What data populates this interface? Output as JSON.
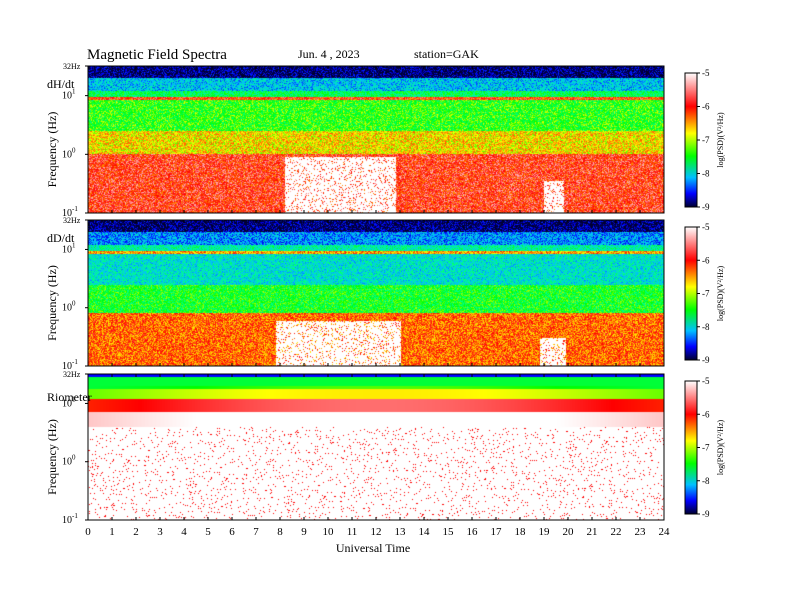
{
  "header": {
    "title": "Magnetic  Field  Spectra",
    "date": "Jun. 4  , 2023",
    "station": "station=GAK"
  },
  "chart_data": [
    {
      "type": "heatmap",
      "panel_label": "dH/dt",
      "ylabel": "Frequency  (Hz)",
      "y_scale": "log",
      "ylim": [
        0.1,
        32
      ],
      "y_ticks": [
        {
          "value": 32,
          "base": "32Hz",
          "exp": ""
        },
        {
          "value": 10,
          "base": "10",
          "exp": "1"
        },
        {
          "value": 1,
          "base": "10",
          "exp": "0"
        },
        {
          "value": 0.1,
          "base": "10",
          "exp": "-1"
        }
      ],
      "xlim": [
        0,
        24
      ],
      "colorbar": {
        "label": "log(PSD)(V²/Hz)",
        "range": [
          -9,
          -5
        ],
        "ticks": [
          "-5",
          "-6",
          "-7",
          "-8",
          "-9"
        ]
      },
      "bands": [
        {
          "f_low": 20,
          "f_high": 32,
          "level": -8.9
        },
        {
          "f_low": 12,
          "f_high": 20,
          "level": -8.0
        },
        {
          "f_low": 9.5,
          "f_high": 12,
          "level": -7.3
        },
        {
          "f_low": 8.3,
          "f_high": 9.5,
          "level": -5.8
        },
        {
          "f_low": 2.5,
          "f_high": 8.3,
          "level": -7.0
        },
        {
          "f_low": 1.0,
          "f_high": 2.5,
          "level": -6.4
        },
        {
          "f_low": 0.1,
          "f_high": 1.0,
          "level": -5.7
        }
      ],
      "quiet_regions": [
        {
          "t_start": 8.2,
          "t_end": 12.8,
          "f_top": 0.9
        },
        {
          "t_start": 19.0,
          "t_end": 19.8,
          "f_top": 0.35
        }
      ]
    },
    {
      "type": "heatmap",
      "panel_label": "dD/dt",
      "ylabel": "Frequency  (Hz)",
      "y_scale": "log",
      "ylim": [
        0.1,
        32
      ],
      "y_ticks": [
        {
          "value": 32,
          "base": "32Hz",
          "exp": ""
        },
        {
          "value": 10,
          "base": "10",
          "exp": "1"
        },
        {
          "value": 1,
          "base": "10",
          "exp": "0"
        },
        {
          "value": 0.1,
          "base": "10",
          "exp": "-1"
        }
      ],
      "xlim": [
        0,
        24
      ],
      "colorbar": {
        "label": "log(PSD)(V²/Hz)",
        "range": [
          -9,
          -5
        ],
        "ticks": [
          "-5",
          "-6",
          "-7",
          "-8",
          "-9"
        ]
      },
      "bands": [
        {
          "f_low": 20,
          "f_high": 32,
          "level": -8.9
        },
        {
          "f_low": 12,
          "f_high": 20,
          "level": -8.2
        },
        {
          "f_low": 9.5,
          "f_high": 12,
          "level": -7.6
        },
        {
          "f_low": 8.3,
          "f_high": 9.5,
          "level": -6.2
        },
        {
          "f_low": 2.5,
          "f_high": 8.3,
          "level": -7.8
        },
        {
          "f_low": 0.8,
          "f_high": 2.5,
          "level": -7.1
        },
        {
          "f_low": 0.1,
          "f_high": 0.8,
          "level": -6.0
        }
      ],
      "quiet_regions": [
        {
          "t_start": 7.8,
          "t_end": 13.0,
          "f_top": 0.6
        },
        {
          "t_start": 18.8,
          "t_end": 19.9,
          "f_top": 0.3
        }
      ]
    },
    {
      "type": "heatmap",
      "panel_label": "Riometer",
      "ylabel": "Frequency  (Hz)",
      "y_scale": "log",
      "ylim": [
        0.1,
        32
      ],
      "y_ticks": [
        {
          "value": 32,
          "base": "32Hz",
          "exp": ""
        },
        {
          "value": 10,
          "base": "10",
          "exp": "1"
        },
        {
          "value": 1,
          "base": "10",
          "exp": "0"
        },
        {
          "value": 0.1,
          "base": "10",
          "exp": "-1"
        }
      ],
      "xlim": [
        0,
        24
      ],
      "colorbar": {
        "label": "log(PSD)(V²/Hz)",
        "range": [
          -9,
          -5
        ],
        "ticks": [
          "-5",
          "-6",
          "-7",
          "-8",
          "-9"
        ]
      },
      "bands": [
        {
          "f_low": 28,
          "f_high": 32,
          "level": -8.6
        },
        {
          "f_low": 18,
          "f_high": 28,
          "level": -7.2
        },
        {
          "f_low": 12,
          "f_high": 18,
          "level": -6.8
        },
        {
          "f_low": 7,
          "f_high": 12,
          "level": -5.8
        },
        {
          "f_low": 4,
          "f_high": 7,
          "level": -5.2
        },
        {
          "f_low": 0.1,
          "f_high": 4,
          "level": -5.0
        }
      ],
      "quiet_regions": []
    }
  ],
  "x_axis": {
    "label": "Universal Time",
    "ticks": [
      "0",
      "1",
      "2",
      "3",
      "4",
      "5",
      "6",
      "7",
      "8",
      "9",
      "10",
      "11",
      "12",
      "13",
      "14",
      "15",
      "16",
      "17",
      "18",
      "19",
      "20",
      "21",
      "22",
      "23",
      "24"
    ]
  }
}
